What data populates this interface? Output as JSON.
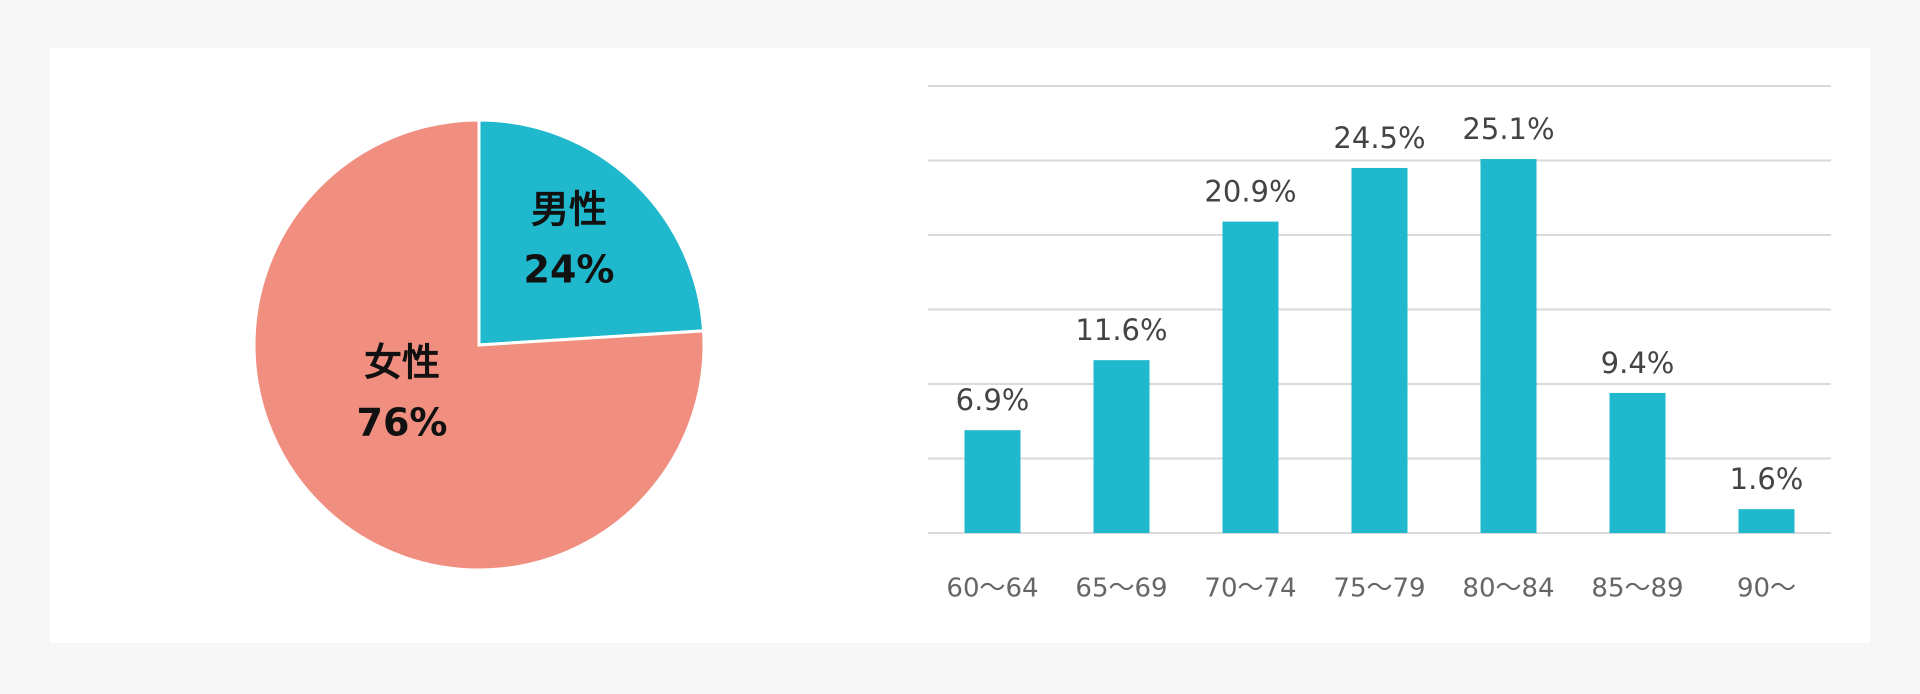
{
  "chart_data": [
    {
      "type": "pie",
      "categories": [
        "男性",
        "女性"
      ],
      "values": [
        24,
        76
      ],
      "value_labels": [
        "24%",
        "76%"
      ],
      "colors": [
        "#1fb8cc",
        "#f08f80"
      ]
    },
    {
      "type": "bar",
      "categories": [
        "60〜64",
        "65〜69",
        "70〜74",
        "75〜79",
        "80〜84",
        "85〜89",
        "90〜"
      ],
      "values": [
        6.9,
        11.6,
        20.9,
        24.5,
        25.1,
        9.4,
        1.6
      ],
      "value_labels": [
        "6.9%",
        "11.6%",
        "20.9%",
        "24.5%",
        "25.1%",
        "9.4%",
        "1.6%"
      ],
      "color": "#1fb8cc",
      "ylim": [
        0,
        30
      ],
      "yticks": [
        0,
        5,
        10,
        15,
        20,
        25,
        30
      ],
      "grid": true
    }
  ]
}
